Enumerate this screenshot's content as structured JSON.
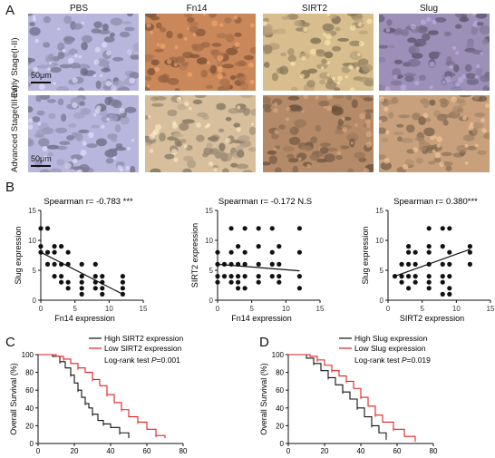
{
  "panelA": {
    "letter": "A",
    "columns": [
      "PBS",
      "Fn14",
      "SIRT2",
      "Slug"
    ],
    "rows": [
      "Early Stage(I-II)",
      "Advanced Stage(III-IV)"
    ],
    "scale_label": "50μm",
    "tile_colors": {
      "PBS": "#b9b6dd",
      "Fn14": "#c9875a",
      "SIRT2": "#d8bd8e",
      "Slug": "#9c8fb8",
      "Fn14_adv": "#d7bf9e",
      "SIRT2_adv": "#b48a68",
      "Slug_adv": "#c8a17c"
    }
  },
  "panelB": {
    "letter": "B",
    "plots": [
      {
        "title": "Spearman r= -0.783 ***",
        "xlabel": "Fn14 expression",
        "ylabel": "Slug expression",
        "xticks": [
          "0",
          "5",
          "10",
          "15"
        ],
        "yticks": [
          "0",
          "5",
          "10",
          "15"
        ]
      },
      {
        "title": "Spearman r= -0.172  N.S",
        "xlabel": "Fn14 expression",
        "ylabel": "SIRT2 expression",
        "xticks": [
          "0",
          "5",
          "10",
          "15"
        ],
        "yticks": [
          "0",
          "5",
          "10",
          "15"
        ]
      },
      {
        "title": "Spearman r= 0.380***",
        "xlabel": "SIRT2 expression",
        "ylabel": "Slug expression",
        "xticks": [
          "0",
          "5",
          "10",
          "15"
        ],
        "yticks": [
          "0",
          "5",
          "10",
          "15"
        ]
      }
    ]
  },
  "panelC": {
    "letter": "C",
    "legend": [
      "High SIRT2 expression",
      "Low SIRT2 expression"
    ],
    "logrank": "Log-rank test",
    "pval_label": "P",
    "pval": "=0.001",
    "xlabel": "Time (months)",
    "ylabel": "Overall Survival (%)",
    "xticks": [
      "0",
      "20",
      "40",
      "60",
      "80"
    ],
    "yticks": [
      "0",
      "20",
      "40",
      "60",
      "80",
      "100"
    ]
  },
  "panelD": {
    "letter": "D",
    "legend": [
      "High Slug expression",
      "Low Slug expression"
    ],
    "logrank": "Log-rank test",
    "pval_label": "P",
    "pval": "=0.019",
    "xlabel": "Time (months)",
    "ylabel": "Overall Survival (%)",
    "xticks": [
      "0",
      "20",
      "40",
      "60",
      "80"
    ],
    "yticks": [
      "0",
      "20",
      "40",
      "60",
      "80",
      "100"
    ]
  },
  "colors": {
    "high": "#111111",
    "low": "#e02020"
  },
  "chart_data": [
    {
      "type": "scatter",
      "title": "Spearman r= -0.783 ***",
      "xlabel": "Fn14 expression",
      "ylabel": "Slug expression",
      "xlim": [
        0,
        15
      ],
      "ylim": [
        0,
        15
      ],
      "points": [
        [
          0,
          12
        ],
        [
          0,
          9
        ],
        [
          0,
          8
        ],
        [
          1,
          12
        ],
        [
          1,
          8
        ],
        [
          1,
          6
        ],
        [
          2,
          9
        ],
        [
          2,
          8
        ],
        [
          2,
          6
        ],
        [
          2,
          4
        ],
        [
          3,
          9
        ],
        [
          3,
          6
        ],
        [
          3,
          4
        ],
        [
          3,
          3
        ],
        [
          4,
          8
        ],
        [
          4,
          6
        ],
        [
          4,
          3
        ],
        [
          4,
          2
        ],
        [
          6,
          6
        ],
        [
          6,
          4
        ],
        [
          6,
          3
        ],
        [
          6,
          2
        ],
        [
          6,
          1
        ],
        [
          8,
          6
        ],
        [
          8,
          4
        ],
        [
          8,
          3
        ],
        [
          8,
          2
        ],
        [
          9,
          4
        ],
        [
          9,
          3
        ],
        [
          9,
          2
        ],
        [
          9,
          1
        ],
        [
          12,
          4
        ],
        [
          12,
          3
        ],
        [
          12,
          2
        ],
        [
          12,
          1
        ]
      ],
      "fit": [
        [
          0,
          8
        ],
        [
          12,
          1
        ]
      ]
    },
    {
      "type": "scatter",
      "title": "Spearman r= -0.172  N.S",
      "xlabel": "Fn14 expression",
      "ylabel": "SIRT2 expression",
      "xlim": [
        0,
        15
      ],
      "ylim": [
        0,
        15
      ],
      "points": [
        [
          0,
          8
        ],
        [
          0,
          6
        ],
        [
          0,
          4
        ],
        [
          0,
          3
        ],
        [
          1,
          6
        ],
        [
          1,
          4
        ],
        [
          2,
          12
        ],
        [
          2,
          8
        ],
        [
          2,
          6
        ],
        [
          2,
          4
        ],
        [
          2,
          3
        ],
        [
          3,
          9
        ],
        [
          3,
          6
        ],
        [
          3,
          4
        ],
        [
          3,
          3
        ],
        [
          3,
          2
        ],
        [
          4,
          12
        ],
        [
          4,
          8
        ],
        [
          4,
          6
        ],
        [
          4,
          4
        ],
        [
          4,
          2
        ],
        [
          6,
          12
        ],
        [
          6,
          9
        ],
        [
          6,
          6
        ],
        [
          6,
          4
        ],
        [
          6,
          3
        ],
        [
          8,
          12
        ],
        [
          8,
          8
        ],
        [
          8,
          6
        ],
        [
          8,
          4
        ],
        [
          9,
          9
        ],
        [
          9,
          6
        ],
        [
          9,
          4
        ],
        [
          9,
          3
        ],
        [
          12,
          12
        ],
        [
          12,
          8
        ],
        [
          12,
          4
        ],
        [
          12,
          2
        ]
      ],
      "fit": [
        [
          0,
          6
        ],
        [
          12,
          4.9
        ]
      ]
    },
    {
      "type": "scatter",
      "title": "Spearman r= 0.380***",
      "xlabel": "SIRT2 expression",
      "ylabel": "Slug expression",
      "xlim": [
        0,
        15
      ],
      "ylim": [
        0,
        15
      ],
      "points": [
        [
          1,
          4
        ],
        [
          2,
          6
        ],
        [
          2,
          4
        ],
        [
          2,
          3
        ],
        [
          3,
          9
        ],
        [
          3,
          8
        ],
        [
          3,
          6
        ],
        [
          3,
          4
        ],
        [
          3,
          2
        ],
        [
          4,
          8
        ],
        [
          4,
          6
        ],
        [
          4,
          4
        ],
        [
          4,
          3
        ],
        [
          6,
          12
        ],
        [
          6,
          9
        ],
        [
          6,
          8
        ],
        [
          6,
          6
        ],
        [
          6,
          4
        ],
        [
          6,
          3
        ],
        [
          6,
          2
        ],
        [
          8,
          12
        ],
        [
          8,
          9
        ],
        [
          8,
          6
        ],
        [
          8,
          4
        ],
        [
          8,
          3
        ],
        [
          8,
          1
        ],
        [
          9,
          12
        ],
        [
          9,
          8
        ],
        [
          9,
          6
        ],
        [
          9,
          4
        ],
        [
          9,
          2
        ],
        [
          9,
          1
        ],
        [
          12,
          9
        ],
        [
          12,
          8
        ],
        [
          12,
          6
        ]
      ],
      "fit": [
        [
          1,
          4
        ],
        [
          12,
          8.5
        ]
      ]
    },
    {
      "type": "line",
      "title": "",
      "xlabel": "Time (months)",
      "ylabel": "Overall Survival (%)",
      "xlim": [
        0,
        80
      ],
      "ylim": [
        0,
        100
      ],
      "series": [
        {
          "name": "High SIRT2 expression",
          "x": [
            0,
            8,
            12,
            15,
            18,
            20,
            22,
            24,
            26,
            28,
            30,
            33,
            36,
            40,
            45,
            50
          ],
          "y": [
            100,
            98,
            92,
            85,
            77,
            68,
            60,
            52,
            45,
            40,
            33,
            26,
            22,
            18,
            12,
            6
          ]
        },
        {
          "name": "Low SIRT2 expression",
          "x": [
            0,
            10,
            14,
            18,
            22,
            26,
            30,
            34,
            38,
            42,
            46,
            50,
            55,
            60,
            65,
            70
          ],
          "y": [
            100,
            98,
            95,
            90,
            85,
            80,
            72,
            65,
            55,
            46,
            38,
            30,
            24,
            16,
            9,
            6
          ]
        }
      ]
    },
    {
      "type": "line",
      "title": "",
      "xlabel": "Time (months)",
      "ylabel": "Overall Survival (%)",
      "xlim": [
        0,
        80
      ],
      "ylim": [
        0,
        100
      ],
      "series": [
        {
          "name": "High Slug expression",
          "x": [
            0,
            10,
            14,
            18,
            22,
            26,
            30,
            34,
            38,
            42,
            46,
            50,
            54
          ],
          "y": [
            100,
            96,
            90,
            82,
            74,
            66,
            58,
            50,
            40,
            30,
            20,
            12,
            6
          ]
        },
        {
          "name": "Low Slug expression",
          "x": [
            0,
            12,
            16,
            20,
            24,
            28,
            32,
            36,
            40,
            44,
            48,
            52,
            58,
            64,
            70
          ],
          "y": [
            100,
            98,
            94,
            88,
            82,
            76,
            70,
            62,
            52,
            42,
            32,
            24,
            16,
            8,
            4
          ]
        }
      ]
    }
  ]
}
